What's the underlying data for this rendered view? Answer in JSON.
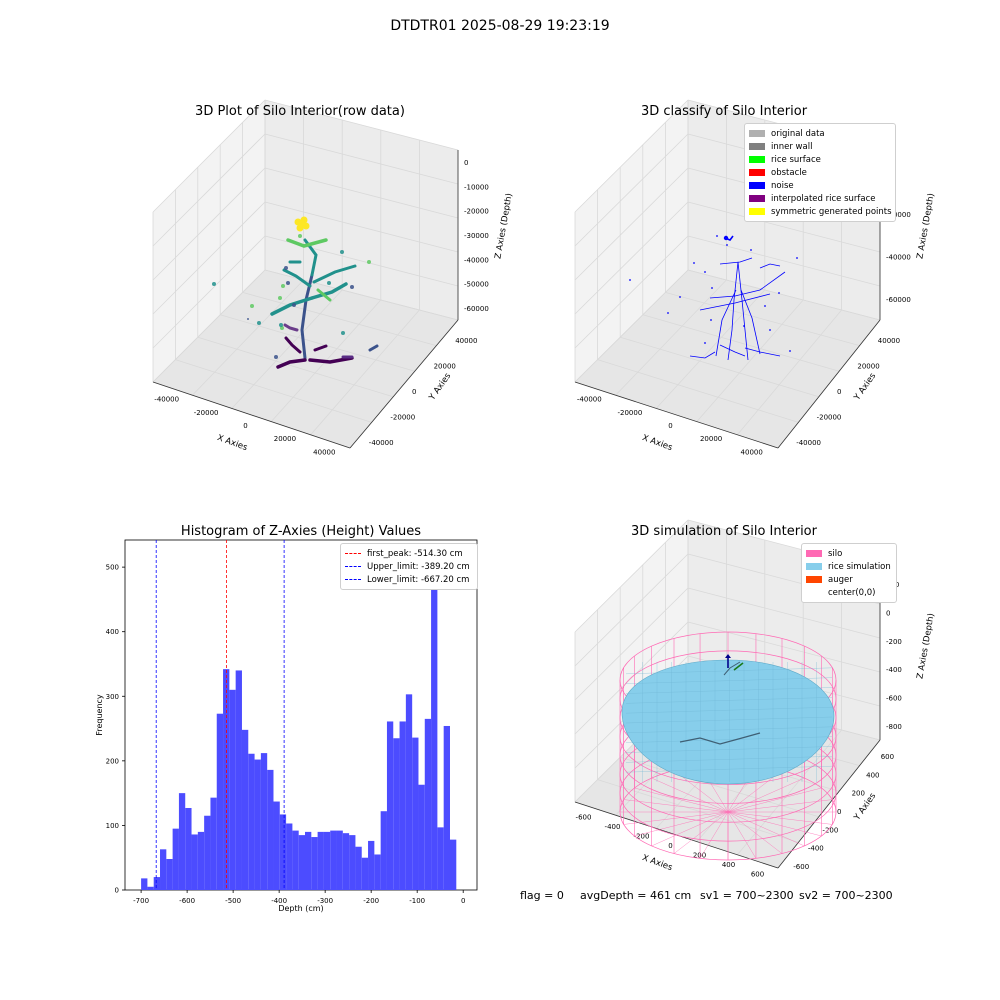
{
  "figure": {
    "suptitle": "DTDTR01 2025-08-29 19:23:19"
  },
  "status_bar": {
    "flag": "flag = 0",
    "avg_depth": "avgDepth = 461 cm",
    "sv1": "sv1 = 700~2300",
    "sv2": "sv2 = 700~2300"
  },
  "colors": {
    "histogram_bar": "#4c4cff",
    "first_peak_line": "#ff0000",
    "limit_lines": "#0000ff",
    "silo_wire": "#ff69b4",
    "rice_surface": "#87ceeb",
    "auger": "#ff4500",
    "noise_points": "#0000ff"
  },
  "chart_data": [
    {
      "id": "raw",
      "type": "scatter",
      "projection": "3d",
      "title": "3D Plot of Silo Interior(row data)",
      "xlabel": "X Axies",
      "ylabel": "Y Axies",
      "zlabel": "Z Axies (Depth)",
      "x_ticks": [
        "-40000",
        "-20000",
        "0",
        "20000",
        "40000"
      ],
      "y_ticks": [
        "40000",
        "20000",
        "0",
        "-20000",
        "-40000"
      ],
      "z_ticks": [
        "0",
        "-10000",
        "-20000",
        "-30000",
        "-40000",
        "-50000",
        "-60000"
      ],
      "colormap": "viridis"
    },
    {
      "id": "classify",
      "type": "scatter",
      "projection": "3d",
      "title": "3D classify of Silo Interior",
      "xlabel": "X Axies",
      "ylabel": "Y Axies",
      "zlabel": "Z Axies (Depth)",
      "x_ticks": [
        "-40000",
        "-20000",
        "0",
        "20000",
        "40000"
      ],
      "y_ticks": [
        "40000",
        "20000",
        "0",
        "-20000",
        "-40000"
      ],
      "z_ticks": [
        "0",
        "-20000",
        "-40000",
        "-60000"
      ],
      "legend": [
        {
          "label": "original data",
          "color": "#b0b0b0"
        },
        {
          "label": "inner wall",
          "color": "#808080"
        },
        {
          "label": "rice surface",
          "color": "#00ff00"
        },
        {
          "label": "obstacle",
          "color": "#ff0000"
        },
        {
          "label": "noise",
          "color": "#0000ff"
        },
        {
          "label": "interpolated rice surface",
          "color": "#800080"
        },
        {
          "label": "symmetric generated points",
          "color": "#ffff00"
        }
      ]
    },
    {
      "id": "histogram",
      "type": "bar",
      "title": "Histogram of Z-Axies (Height) Values",
      "xlabel": "Depth (cm)",
      "ylabel": "Frequency",
      "xlim": [
        -735,
        30
      ],
      "ylim": [
        0,
        542
      ],
      "x_ticks": [
        "-700",
        "-600",
        "-500",
        "-400",
        "-300",
        "-200",
        "-100",
        "0"
      ],
      "y_ticks": [
        "0",
        "100",
        "200",
        "300",
        "400",
        "500"
      ],
      "bin_start": -700,
      "bin_width": 13.7,
      "values": [
        18,
        5,
        20,
        63,
        48,
        95,
        150,
        127,
        86,
        90,
        115,
        143,
        273,
        342,
        310,
        340,
        248,
        211,
        202,
        212,
        186,
        137,
        117,
        103,
        92,
        85,
        90,
        82,
        90,
        90,
        92,
        92,
        88,
        85,
        67,
        50,
        76,
        55,
        122,
        261,
        235,
        261,
        303,
        236,
        163,
        265,
        515,
        97,
        254,
        78
      ],
      "vlines": [
        {
          "label": "first_peak: -514.30 cm",
          "x": -514.3,
          "color": "#ff0000"
        },
        {
          "label": "Upper_limit: -389.20 cm",
          "x": -389.2,
          "color": "#0000ff"
        },
        {
          "label": "Lower_limit: -667.20 cm",
          "x": -667.2,
          "color": "#0000ff"
        }
      ],
      "legend_position": "upper right"
    },
    {
      "id": "simulation",
      "type": "surface",
      "projection": "3d",
      "title": "3D simulation of Silo Interior",
      "xlabel": "X Axies",
      "ylabel": "Y Axies",
      "zlabel": "Z Axies (Depth)",
      "x_ticks": [
        "-600",
        "-400",
        "-200",
        "0",
        "200",
        "400",
        "600"
      ],
      "y_ticks": [
        "600",
        "400",
        "200",
        "0",
        "-200",
        "-400",
        "-600"
      ],
      "z_ticks": [
        "200",
        "0",
        "-200",
        "-400",
        "-600",
        "-800"
      ],
      "legend": [
        {
          "label": "silo",
          "color": "#ff69b4"
        },
        {
          "label": "rice simulation",
          "color": "#87ceeb"
        },
        {
          "label": "auger",
          "color": "#ff4500"
        },
        {
          "label": "center(0,0)",
          "color": ""
        }
      ]
    }
  ]
}
